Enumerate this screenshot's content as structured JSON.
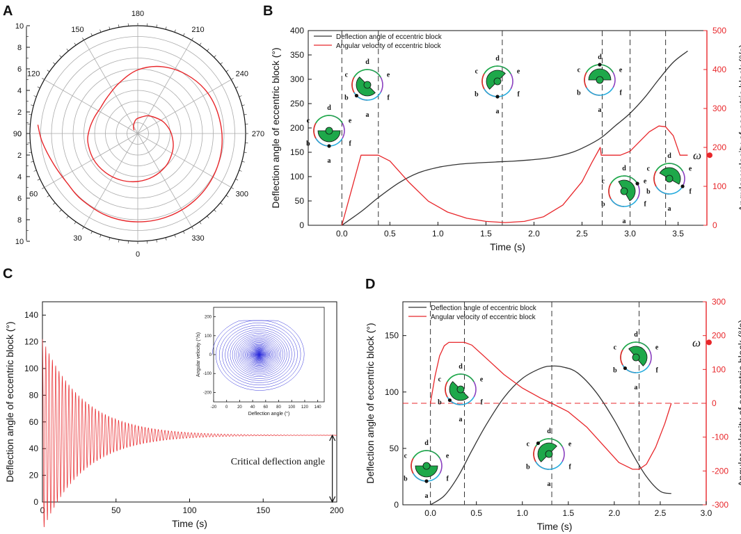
{
  "panel_labels": {
    "A": "A",
    "B": "B",
    "C": "C",
    "D": "D"
  },
  "colors": {
    "black": "#333333",
    "red": "#e8262a",
    "blue": "#3333dd",
    "green": "#1ea84a",
    "grid": "#aaaaaa"
  },
  "omega_symbol": "ω",
  "chart_data": [
    {
      "panel": "A",
      "type": "polar-line",
      "angle_labels": [
        "180",
        "210",
        "240",
        "270",
        "300",
        "330",
        "0",
        "30",
        "60",
        "90",
        "120",
        "150"
      ],
      "radial_ticks_upper": [
        "10",
        "8",
        "6",
        "4",
        "2",
        "0"
      ],
      "radial_ticks_lower": [
        "2",
        "4",
        "6",
        "8",
        "10"
      ],
      "rmax": 10,
      "series": [
        {
          "name": "trajectory",
          "color": "#e8262a",
          "theta_deg": [
            132,
            145,
            160,
            175,
            195,
            210,
            228,
            245,
            262,
            275,
            290,
            305,
            320,
            340,
            0,
            20,
            40,
            60,
            80,
            95,
            110,
            125,
            140,
            160,
            180,
            200,
            220,
            240,
            260,
            280,
            300,
            320,
            340,
            0,
            20,
            40,
            55,
            70,
            85,
            95
          ],
          "r": [
            0.45,
            0.7,
            1.0,
            1.35,
            1.6,
            1.9,
            2.2,
            2.6,
            2.95,
            3.2,
            3.5,
            3.75,
            4.0,
            4.25,
            4.45,
            4.6,
            4.7,
            4.75,
            4.7,
            4.5,
            4.3,
            4.2,
            4.4,
            5.0,
            5.9,
            6.6,
            7.1,
            7.5,
            7.7,
            7.9,
            8.05,
            8.15,
            8.2,
            8.2,
            8.15,
            8.05,
            8.0,
            8.3,
            8.9,
            9.3
          ]
        }
      ]
    },
    {
      "panel": "B",
      "type": "line",
      "xlabel": "Time (s)",
      "ylabel": "Deflection angle of eccentric block (°)",
      "y2label": "Angular velocity of eccentric block (°/s)",
      "xlim": [
        -0.35,
        3.8
      ],
      "ylim": [
        0,
        400
      ],
      "y2lim": [
        0,
        500
      ],
      "xticks": [
        "0.0",
        "0.5",
        "1.0",
        "1.5",
        "2.0",
        "2.5",
        "3.0",
        "3.5"
      ],
      "yticks": [
        "0",
        "50",
        "100",
        "150",
        "200",
        "250",
        "300",
        "350",
        "400"
      ],
      "y2ticks": [
        "0",
        "100",
        "200",
        "300",
        "400",
        "500"
      ],
      "series": [
        {
          "name": "Deflection angle of eccentric block",
          "axis": "left",
          "color": "#333333",
          "x": [
            0,
            0.2,
            0.38,
            0.6,
            0.8,
            1.0,
            1.2,
            1.4,
            1.6,
            1.8,
            2.0,
            2.2,
            2.4,
            2.55,
            2.7,
            2.85,
            3.0,
            3.15,
            3.3,
            3.45,
            3.6
          ],
          "y": [
            0,
            28,
            57,
            88,
            108,
            119,
            125,
            128,
            130,
            132,
            135,
            140,
            150,
            163,
            180,
            205,
            230,
            262,
            300,
            335,
            358
          ]
        },
        {
          "name": "Angular velocity of eccentric block",
          "axis": "right",
          "color": "#e8262a",
          "x": [
            0,
            0.2,
            0.38,
            0.5,
            0.7,
            0.9,
            1.1,
            1.3,
            1.5,
            1.7,
            1.9,
            2.1,
            2.3,
            2.5,
            2.6,
            2.69,
            2.7,
            2.9,
            3.0,
            3.1,
            3.2,
            3.3,
            3.37,
            3.45,
            3.52,
            3.6
          ],
          "y": [
            0,
            180,
            180,
            165,
            110,
            62,
            34,
            18,
            10,
            7,
            10,
            22,
            52,
            112,
            160,
            200,
            180,
            180,
            190,
            215,
            240,
            255,
            253,
            230,
            180,
            180
          ]
        }
      ],
      "dashed_x": [
        0.0,
        0.38,
        1.67,
        2.71,
        3.0,
        3.37
      ],
      "omega_value": 180,
      "legend": [
        "Deflection angle of eccentric block",
        "Angular velocity of eccentric block"
      ]
    },
    {
      "panel": "C",
      "type": "line",
      "xlabel": "Time (s)",
      "ylabel": "Deflection angle of eccentric block (°)",
      "xlim": [
        0,
        200
      ],
      "ylim": [
        0,
        150
      ],
      "xticks": [
        "0",
        "50",
        "100",
        "150",
        "200"
      ],
      "yticks": [
        "0",
        "20",
        "40",
        "60",
        "80",
        "100",
        "120",
        "140"
      ],
      "equilibrium": 50,
      "initial_amplitude": 72,
      "decay_tau": 28,
      "period": 2.25,
      "annotation": "Critical deflection angle",
      "series": [
        {
          "name": "Deflection angle",
          "color": "#e8262a"
        }
      ],
      "inset": {
        "type": "phase",
        "xlabel": "Deflection angle (°)",
        "ylabel": "Angular velocity (°/s)",
        "xlim": [
          -20,
          150
        ],
        "ylim": [
          -250,
          250
        ],
        "xticks": [
          "-20",
          "0",
          "20",
          "40",
          "60",
          "80",
          "100",
          "120",
          "140"
        ],
        "yticks": [
          "-200",
          "-100",
          "0",
          "100",
          "200"
        ],
        "center": 50,
        "color": "#3333dd"
      }
    },
    {
      "panel": "D",
      "type": "line",
      "xlabel": "Time (s)",
      "ylabel": "Deflection angle of eccentric block (°)",
      "y2label": "Angular velocity of eccentric block (°/s)",
      "xlim": [
        -0.3,
        3.0
      ],
      "ylim": [
        0,
        180
      ],
      "y2lim": [
        -300,
        300
      ],
      "xticks": [
        "0.0",
        "0.5",
        "1.0",
        "1.5",
        "2.0",
        "2.5",
        "3.0"
      ],
      "yticks": [
        "0",
        "50",
        "100",
        "150"
      ],
      "y2ticks": [
        "-300",
        "-200",
        "-100",
        "0",
        "100",
        "200",
        "300"
      ],
      "series": [
        {
          "name": "Deflection angle of eccentric block",
          "axis": "left",
          "color": "#333333",
          "x": [
            0,
            0.15,
            0.3,
            0.45,
            0.6,
            0.8,
            1.0,
            1.2,
            1.32,
            1.45,
            1.6,
            1.8,
            2.0,
            2.2,
            2.35,
            2.5,
            2.62
          ],
          "y": [
            0,
            8,
            25,
            48,
            70,
            95,
            112,
            121,
            123,
            122,
            117,
            100,
            75,
            45,
            25,
            12,
            10
          ]
        },
        {
          "name": "Angular velocity of eccentric block",
          "axis": "right",
          "color": "#e8262a",
          "x": [
            0,
            0.05,
            0.1,
            0.15,
            0.2,
            0.37,
            0.45,
            0.6,
            0.8,
            1.0,
            1.2,
            1.32,
            1.5,
            1.7,
            1.9,
            2.05,
            2.2,
            2.27,
            2.35,
            2.45,
            2.55,
            2.62
          ],
          "y": [
            0,
            80,
            140,
            170,
            180,
            180,
            172,
            135,
            85,
            45,
            15,
            0,
            -25,
            -70,
            -130,
            -175,
            -195,
            -195,
            -180,
            -130,
            -60,
            0
          ]
        }
      ],
      "dashed_x": [
        0.0,
        0.37,
        1.32,
        2.27
      ],
      "zero_line": 0,
      "omega_value": 180,
      "legend": [
        "Deflection angle of eccentric block",
        "Angular velocity of eccentric block"
      ]
    }
  ],
  "dial_letters": [
    "a",
    "b",
    "c",
    "d",
    "e",
    "f"
  ]
}
